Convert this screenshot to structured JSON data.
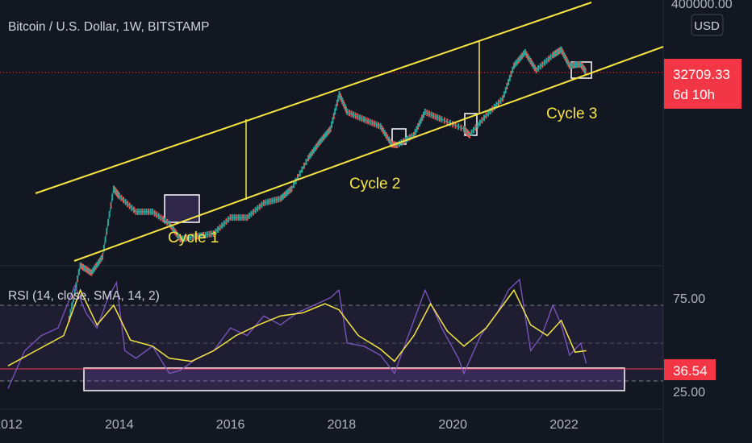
{
  "header": {
    "title": "Bitcoin / U.S. Dollar, 1W, BITSTAMP",
    "currency": "USD"
  },
  "price_axis": {
    "top_label": "400000.00",
    "last_price": "32709.33",
    "countdown": "6d 10h"
  },
  "annotations": {
    "cycle1": "Cycle 1",
    "cycle2": "Cycle 2",
    "cycle3": "Cycle 3"
  },
  "rsi_panel": {
    "legend": "RSI (14, close, SMA, 14, 2)",
    "level_high": "75.00",
    "level_low": "25.00",
    "current": "36.54"
  },
  "colors": {
    "background": "#131722",
    "channel": "#f5e642",
    "candle_up": "#26a69a",
    "candle_down": "#ef5350",
    "rsi_line": "#7e57c2",
    "rsi_ma": "#f5e642",
    "price_tag": "#f23645"
  },
  "chart_data": [
    {
      "type": "line",
      "title": "Bitcoin / U.S. Dollar, 1W, BITSTAMP",
      "x_ticks": [
        "2012",
        "2014",
        "2016",
        "2018",
        "2020",
        "2022"
      ],
      "xlim": [
        2012,
        2023.6
      ],
      "y_scale": "log",
      "series": [
        {
          "x": [
            2013.1,
            2013.3,
            2013.5,
            2013.7,
            2013.9,
            2014.0,
            2014.3,
            2014.6,
            2014.9,
            2015.1,
            2015.4,
            2015.7,
            2016.0,
            2016.3,
            2016.6,
            2016.9,
            2017.1,
            2017.4,
            2017.6,
            2017.8,
            2017.96,
            2018.1,
            2018.4,
            2018.7,
            2018.9,
            2019.0,
            2019.3,
            2019.5,
            2019.8,
            2020.2,
            2020.3,
            2020.6,
            2020.9,
            2021.1,
            2021.3,
            2021.5,
            2021.8,
            2021.95,
            2022.1,
            2022.3,
            2022.4
          ],
          "y": [
            20,
            100,
            80,
            130,
            1000,
            800,
            500,
            500,
            350,
            220,
            240,
            260,
            420,
            420,
            650,
            740,
            1000,
            2500,
            4000,
            6000,
            17000,
            10000,
            8000,
            6500,
            3800,
            3700,
            5000,
            10000,
            8000,
            6000,
            5000,
            9000,
            15000,
            40000,
            60000,
            35000,
            55000,
            65000,
            40000,
            42000,
            32709
          ]
        }
      ],
      "channel_lines": [
        "upper",
        "lower"
      ],
      "annotations": [
        "Cycle 1",
        "Cycle 2",
        "Cycle 3"
      ],
      "last_value": 32709.33
    },
    {
      "type": "line",
      "title": "RSI (14, close, SMA, 14, 2)",
      "ylim": [
        10,
        90
      ],
      "levels": [
        75,
        50,
        25
      ],
      "series": [
        {
          "name": "RSI",
          "x": [
            2012.0,
            2012.3,
            2012.6,
            2012.9,
            2013.2,
            2013.4,
            2013.6,
            2013.8,
            2013.95,
            2014.1,
            2014.3,
            2014.6,
            2014.9,
            2015.1,
            2015.4,
            2015.7,
            2016.0,
            2016.3,
            2016.6,
            2016.9,
            2017.2,
            2017.5,
            2017.8,
            2017.95,
            2018.1,
            2018.4,
            2018.7,
            2018.95,
            2019.2,
            2019.5,
            2019.8,
            2020.1,
            2020.2,
            2020.5,
            2020.8,
            2021.0,
            2021.2,
            2021.4,
            2021.6,
            2021.8,
            2021.95,
            2022.1,
            2022.3,
            2022.4
          ],
          "y": [
            20,
            45,
            55,
            60,
            88,
            70,
            60,
            80,
            90,
            45,
            40,
            48,
            30,
            32,
            40,
            45,
            60,
            55,
            68,
            62,
            70,
            75,
            80,
            85,
            50,
            48,
            42,
            30,
            55,
            85,
            60,
            40,
            30,
            55,
            70,
            85,
            92,
            45,
            55,
            75,
            62,
            42,
            50,
            36.54
          ]
        },
        {
          "name": "RSI-based MA",
          "x": [
            2012.0,
            2012.5,
            2013.0,
            2013.3,
            2013.6,
            2013.9,
            2014.2,
            2014.6,
            2014.9,
            2015.3,
            2015.7,
            2016.1,
            2016.5,
            2016.9,
            2017.3,
            2017.7,
            2017.95,
            2018.3,
            2018.7,
            2018.95,
            2019.3,
            2019.6,
            2019.9,
            2020.2,
            2020.6,
            2020.9,
            2021.1,
            2021.4,
            2021.7,
            2021.95,
            2022.2,
            2022.4
          ],
          "y": [
            35,
            45,
            55,
            85,
            62,
            75,
            52,
            48,
            40,
            38,
            45,
            55,
            62,
            68,
            70,
            76,
            72,
            55,
            46,
            38,
            55,
            76,
            58,
            48,
            60,
            75,
            85,
            62,
            55,
            65,
            44,
            45
          ]
        }
      ],
      "last_value": 36.54
    }
  ]
}
